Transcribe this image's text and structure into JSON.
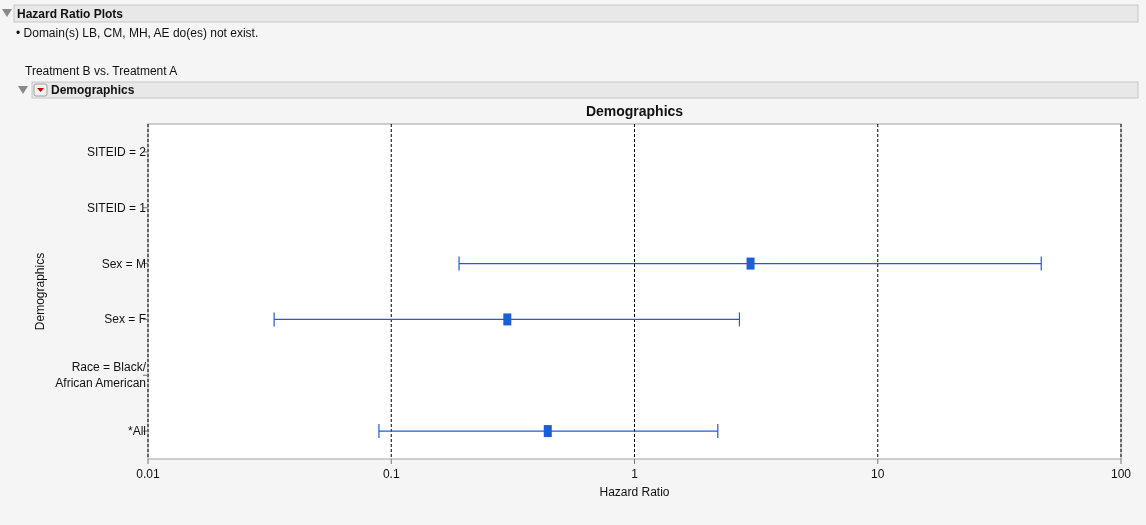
{
  "chart_data": {
    "type": "scatter",
    "title": "Demographics",
    "xlabel": "Hazard Ratio",
    "ylabel": "Demographics",
    "annotations": [
      "Hazard Ratio Plots",
      "• Domain(s) LB, CM, MH, AE do(es) not exist.",
      "Treatment B vs. Treatment A",
      "Demographics"
    ],
    "orientation": "horizontal",
    "categories": [
      "SITEID = 2",
      "SITEID = 1",
      "Sex = M",
      "Sex = F",
      "Race = Black/ African American",
      "*All"
    ],
    "color": "#1a5fd6",
    "values": [
      null,
      null,
      3.0,
      0.3,
      null,
      0.44
    ],
    "errors": [
      null,
      null,
      [
        0.19,
        47
      ],
      [
        0.033,
        2.7
      ],
      null,
      [
        0.089,
        2.2
      ]
    ],
    "log": "x",
    "xlim": [
      0.01,
      100
    ],
    "xticks": [
      0.01,
      0.1,
      1,
      10,
      100
    ],
    "grid": "x",
    "line_style": "dashed",
    "marker": "square"
  }
}
